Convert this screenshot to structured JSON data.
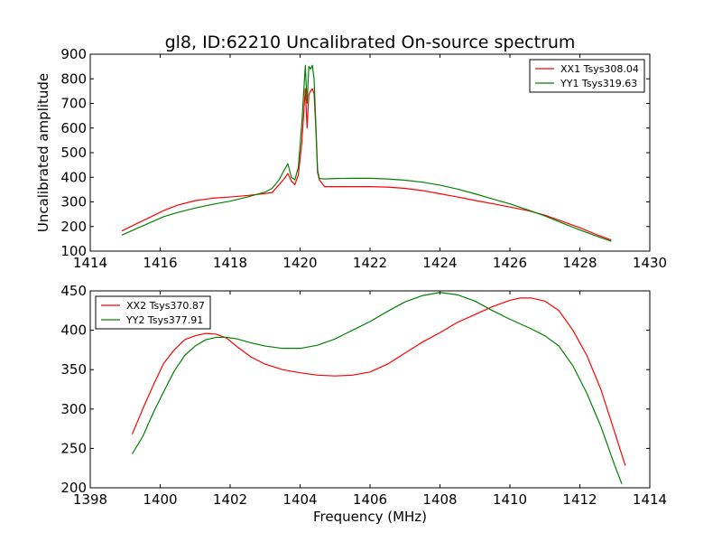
{
  "figure": {
    "title": "gl8, ID:62210 Uncalibrated On-source spectrum"
  },
  "colors": {
    "red": "#ff0000",
    "green": "#008000"
  },
  "chart_data": [
    {
      "type": "line",
      "title": "gl8, ID:62210 Uncalibrated On-source spectrum",
      "xlabel": "",
      "ylabel": "Uncalibrated amplitude",
      "xlim": [
        1414,
        1430
      ],
      "ylim": [
        100,
        900
      ],
      "xticks": [
        1414,
        1416,
        1418,
        1420,
        1422,
        1424,
        1426,
        1428,
        1430
      ],
      "yticks": [
        100,
        200,
        300,
        400,
        500,
        600,
        700,
        800,
        900
      ],
      "grid": false,
      "legend": "top-right",
      "series": [
        {
          "name": "XX1 Tsys308.04",
          "color": "#ff0000",
          "x": [
            1414.9,
            1415.3,
            1415.7,
            1416.1,
            1416.5,
            1417.0,
            1417.5,
            1418.0,
            1418.5,
            1419.0,
            1419.2,
            1419.4,
            1419.55,
            1419.65,
            1419.75,
            1419.85,
            1419.95,
            1420.05,
            1420.15,
            1420.2,
            1420.25,
            1420.3,
            1420.35,
            1420.4,
            1420.45,
            1420.5,
            1420.55,
            1420.7,
            1421.0,
            1421.5,
            1422.0,
            1422.5,
            1423.0,
            1423.5,
            1424.0,
            1424.5,
            1425.0,
            1425.5,
            1426.0,
            1426.5,
            1427.0,
            1427.5,
            1428.0,
            1428.5,
            1428.9
          ],
          "y": [
            182,
            210,
            237,
            265,
            287,
            305,
            315,
            320,
            326,
            334,
            338,
            370,
            395,
            415,
            385,
            370,
            410,
            540,
            760,
            600,
            735,
            750,
            760,
            740,
            600,
            420,
            390,
            362,
            362,
            362,
            362,
            360,
            355,
            346,
            333,
            320,
            306,
            293,
            279,
            265,
            246,
            221,
            195,
            166,
            145
          ]
        },
        {
          "name": "YY1 Tsys319.63",
          "color": "#008000",
          "x": [
            1414.9,
            1415.3,
            1415.7,
            1416.1,
            1416.5,
            1417.0,
            1417.5,
            1418.0,
            1418.5,
            1419.0,
            1419.2,
            1419.4,
            1419.55,
            1419.65,
            1419.75,
            1419.85,
            1419.95,
            1420.05,
            1420.15,
            1420.2,
            1420.25,
            1420.3,
            1420.35,
            1420.4,
            1420.45,
            1420.5,
            1420.55,
            1420.7,
            1421.0,
            1421.5,
            1422.0,
            1422.5,
            1423.0,
            1423.5,
            1424.0,
            1424.5,
            1425.0,
            1425.5,
            1426.0,
            1426.5,
            1427.0,
            1427.5,
            1428.0,
            1428.5,
            1428.9
          ],
          "y": [
            165,
            190,
            215,
            240,
            257,
            275,
            290,
            303,
            320,
            340,
            355,
            390,
            430,
            455,
            400,
            390,
            440,
            620,
            855,
            700,
            850,
            840,
            855,
            800,
            620,
            430,
            395,
            393,
            395,
            396,
            396,
            393,
            388,
            380,
            368,
            352,
            333,
            312,
            292,
            268,
            243,
            214,
            186,
            160,
            140
          ]
        }
      ]
    },
    {
      "type": "line",
      "title": "",
      "xlabel": "Frequency (MHz)",
      "ylabel": "",
      "xlim": [
        1398,
        1414
      ],
      "ylim": [
        200,
        450
      ],
      "xticks": [
        1398,
        1400,
        1402,
        1404,
        1406,
        1408,
        1410,
        1412,
        1414
      ],
      "yticks": [
        200,
        250,
        300,
        350,
        400,
        450
      ],
      "grid": false,
      "legend": "top-left",
      "series": [
        {
          "name": "XX2 Tsys370.87",
          "color": "#ff0000",
          "x": [
            1399.2,
            1399.5,
            1399.8,
            1400.1,
            1400.4,
            1400.7,
            1401.0,
            1401.3,
            1401.6,
            1401.9,
            1402.2,
            1402.6,
            1403.0,
            1403.5,
            1404.0,
            1404.5,
            1405.0,
            1405.5,
            1406.0,
            1406.5,
            1407.0,
            1407.5,
            1408.0,
            1408.5,
            1409.0,
            1409.5,
            1410.0,
            1410.3,
            1410.6,
            1411.0,
            1411.4,
            1411.8,
            1412.2,
            1412.6,
            1413.0,
            1413.3
          ],
          "y": [
            268,
            300,
            330,
            358,
            375,
            388,
            393,
            396,
            395,
            390,
            379,
            366,
            357,
            350,
            346,
            343,
            342,
            343,
            347,
            357,
            371,
            385,
            397,
            410,
            420,
            430,
            438,
            441,
            441,
            437,
            425,
            400,
            368,
            325,
            270,
            228
          ]
        },
        {
          "name": "YY2 Tsys377.91",
          "color": "#008000",
          "x": [
            1399.2,
            1399.5,
            1399.8,
            1400.1,
            1400.4,
            1400.7,
            1401.0,
            1401.3,
            1401.6,
            1401.9,
            1402.2,
            1402.6,
            1403.0,
            1403.5,
            1404.0,
            1404.5,
            1405.0,
            1405.5,
            1406.0,
            1406.5,
            1407.0,
            1407.5,
            1408.0,
            1408.5,
            1409.0,
            1409.5,
            1410.0,
            1410.3,
            1410.6,
            1411.0,
            1411.4,
            1411.8,
            1412.2,
            1412.6,
            1413.0,
            1413.2
          ],
          "y": [
            243,
            265,
            295,
            322,
            348,
            368,
            380,
            388,
            391,
            391,
            389,
            384,
            380,
            377,
            377,
            381,
            389,
            400,
            411,
            424,
            436,
            444,
            448,
            445,
            437,
            425,
            414,
            408,
            402,
            393,
            380,
            355,
            320,
            278,
            228,
            205
          ]
        }
      ]
    }
  ]
}
